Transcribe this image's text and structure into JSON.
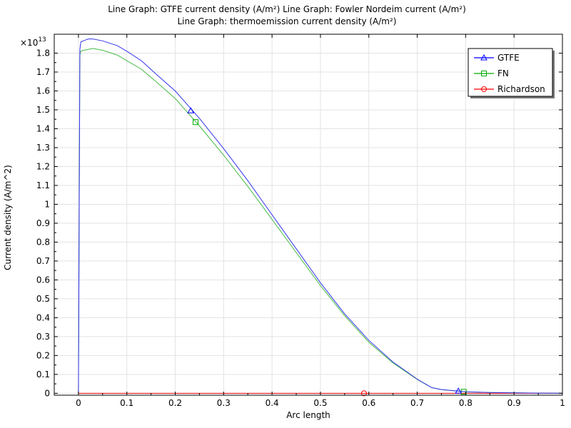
{
  "chart_data": {
    "type": "line",
    "title_line1": "Line Graph: GTFE current density (A/m²)  Line Graph: Fowler Nordeim current (A/m²)",
    "title_line2": "Line Graph: thermoemission current density (A/m²)",
    "xlabel": "Arc length",
    "ylabel": "Current density (A/m^2)",
    "y_multiplier": "×10",
    "y_exponent": "13",
    "xlim": [
      -0.05,
      1.0
    ],
    "ylim": [
      -0.01,
      1.9
    ],
    "x_ticks": [
      0,
      0.1,
      0.2,
      0.3,
      0.4,
      0.5,
      0.6,
      0.7,
      0.8,
      0.9,
      1
    ],
    "y_ticks": [
      0,
      0.1,
      0.2,
      0.3,
      0.4,
      0.5,
      0.6,
      0.7,
      0.8,
      0.9,
      1,
      1.1,
      1.2,
      1.3,
      1.4,
      1.5,
      1.6,
      1.7,
      1.8
    ],
    "grid": true,
    "legend_position": "top-right",
    "series": [
      {
        "name": "GTFE",
        "color": "#0000ff",
        "marker": "triangle",
        "markers_at": [
          [
            0.232,
            1.495
          ],
          [
            0.785,
            0.012
          ]
        ],
        "x": [
          0,
          0.003,
          0.005,
          0.01,
          0.02,
          0.03,
          0.05,
          0.08,
          0.1,
          0.13,
          0.16,
          0.2,
          0.25,
          0.3,
          0.35,
          0.4,
          0.45,
          0.5,
          0.55,
          0.6,
          0.65,
          0.7,
          0.72,
          0.73,
          0.75,
          0.8,
          0.85,
          0.9,
          0.95,
          1.0
        ],
        "y": [
          0,
          1.82,
          1.86,
          1.865,
          1.875,
          1.875,
          1.865,
          1.84,
          1.81,
          1.76,
          1.69,
          1.6,
          1.455,
          1.295,
          1.125,
          0.945,
          0.765,
          0.585,
          0.42,
          0.28,
          0.165,
          0.075,
          0.045,
          0.03,
          0.02,
          0.008,
          0.004,
          0.002,
          0.001,
          0.0005
        ]
      },
      {
        "name": "FN",
        "color": "#00aa00",
        "marker": "square",
        "markers_at": [
          [
            0.242,
            1.435
          ],
          [
            0.796,
            0.008
          ]
        ],
        "x": [
          0,
          0.003,
          0.005,
          0.01,
          0.02,
          0.03,
          0.05,
          0.08,
          0.1,
          0.13,
          0.16,
          0.2,
          0.25,
          0.3,
          0.35,
          0.4,
          0.45,
          0.5,
          0.55,
          0.6,
          0.65,
          0.7,
          0.72,
          0.73,
          0.75,
          0.8,
          0.85,
          0.9,
          0.95,
          1.0
        ],
        "y": [
          0,
          1.79,
          1.81,
          1.815,
          1.82,
          1.825,
          1.815,
          1.79,
          1.76,
          1.715,
          1.65,
          1.56,
          1.415,
          1.26,
          1.095,
          0.92,
          0.745,
          0.57,
          0.41,
          0.27,
          0.16,
          0.073,
          0.044,
          0.03,
          0.02,
          0.008,
          0.004,
          0.002,
          0.001,
          0.0005
        ]
      },
      {
        "name": "Richardson",
        "color": "#ff0000",
        "marker": "circle",
        "markers_at": [
          [
            0.59,
            0.0
          ]
        ],
        "x": [
          0,
          1.0
        ],
        "y": [
          0,
          0
        ]
      }
    ]
  }
}
